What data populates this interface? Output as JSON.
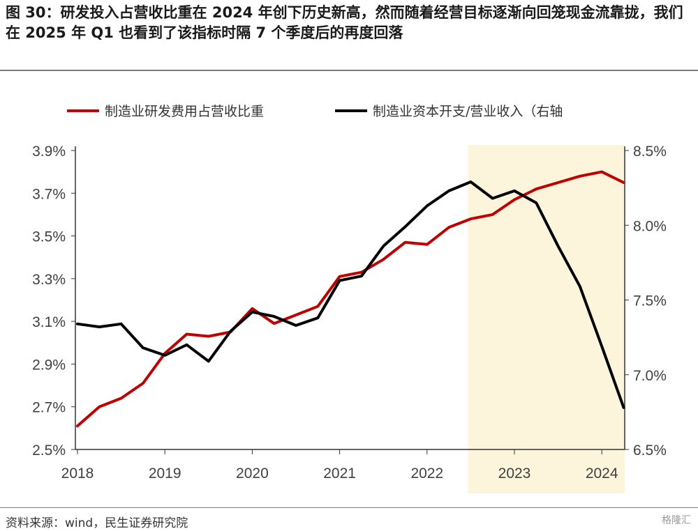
{
  "title": "图 30：研发投入占营收比重在 2024 年创下历史新高，然而随着经营目标逐渐向回笼现金流靠拢，我们在 2025 年 Q1 也看到了该指标时隔 7 个季度后的再度回落",
  "source": "资料来源：wind，民生证券研究院",
  "watermark": "格隆汇",
  "chart_data": {
    "type": "line",
    "x": [
      "2018Q1",
      "2018Q2",
      "2018Q3",
      "2018Q4",
      "2019Q1",
      "2019Q2",
      "2019Q3",
      "2019Q4",
      "2020Q1",
      "2020Q2",
      "2020Q3",
      "2020Q4",
      "2021Q1",
      "2021Q2",
      "2021Q3",
      "2021Q4",
      "2022Q1",
      "2022Q2",
      "2022Q3",
      "2022Q4",
      "2023Q1",
      "2023Q2",
      "2023Q3",
      "2023Q4",
      "2024Q1",
      "2024Q2"
    ],
    "x_tick_labels": [
      "2018",
      "2019",
      "2020",
      "2021",
      "2022",
      "2023",
      "2024"
    ],
    "series": [
      {
        "name": "制造业研发费用占营收比重",
        "axis": "left",
        "color": "#C00000",
        "values": [
          2.61,
          2.7,
          2.74,
          2.81,
          2.95,
          3.04,
          3.03,
          3.05,
          3.16,
          3.09,
          3.13,
          3.17,
          3.31,
          3.33,
          3.39,
          3.47,
          3.46,
          3.54,
          3.58,
          3.6,
          3.67,
          3.72,
          3.75,
          3.78,
          3.8,
          3.75
        ]
      },
      {
        "name": "制造业资本开支/营业收入（右轴",
        "axis": "right",
        "color": "#000000",
        "values": [
          7.34,
          7.32,
          7.34,
          7.18,
          7.13,
          7.2,
          7.09,
          7.29,
          7.42,
          7.39,
          7.33,
          7.38,
          7.63,
          7.66,
          7.86,
          7.99,
          8.13,
          8.23,
          8.29,
          8.18,
          8.23,
          8.15,
          7.86,
          7.59,
          7.19,
          6.78
        ]
      }
    ],
    "y_left": {
      "ticks": [
        "3.9%",
        "3.7%",
        "3.5%",
        "3.3%",
        "3.1%",
        "2.9%",
        "2.7%",
        "2.5%"
      ],
      "range": [
        2.5,
        3.9
      ]
    },
    "y_right": {
      "ticks": [
        "8.5%",
        "8.0%",
        "7.5%",
        "7.0%",
        "6.5%"
      ],
      "range": [
        6.5,
        8.5
      ]
    },
    "highlight": {
      "from": "2022Q3",
      "to": "2024Q2",
      "color": "#FDF4DC"
    },
    "grid": false,
    "legend_position": "top"
  }
}
